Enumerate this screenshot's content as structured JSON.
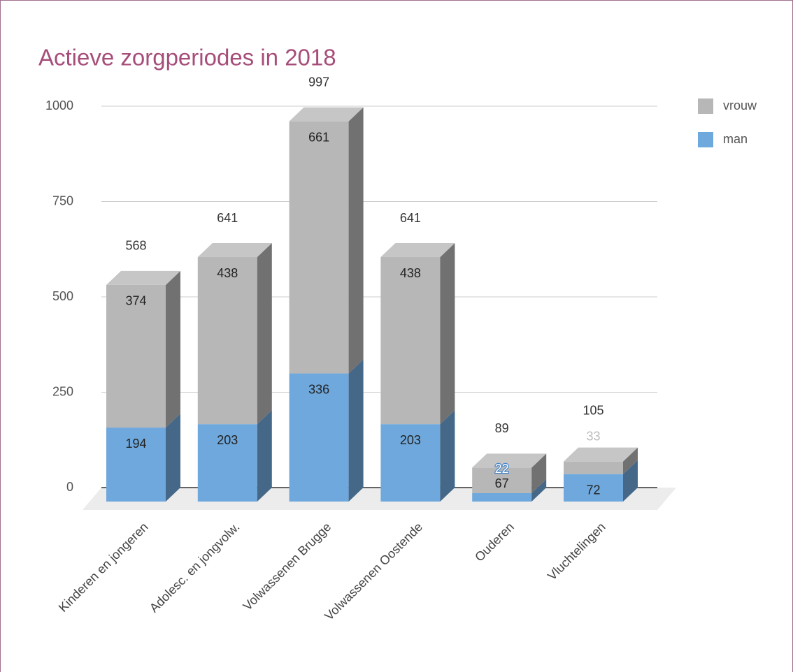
{
  "chart_data": {
    "type": "bar3d_stacked",
    "title": "Actieve zorgperiodes in 2018",
    "categories": [
      "Kinderen en jongeren",
      "Adolesc. en jongvolw.",
      "Volwassenen Brugge",
      "Volwassenen Oostende",
      "Ouderen",
      "Vluchtelingen"
    ],
    "series": [
      {
        "name": "man",
        "color": "#6fa8dc",
        "values": [
          194,
          203,
          336,
          203,
          22,
          72
        ]
      },
      {
        "name": "vrouw",
        "color": "#b7b7b7",
        "values": [
          374,
          438,
          661,
          438,
          67,
          33
        ]
      }
    ],
    "totals": [
      568,
      641,
      997,
      641,
      89,
      105
    ],
    "ylim": [
      0,
      1000
    ],
    "yticks": [
      0,
      250,
      500,
      750,
      1000
    ],
    "grid": true,
    "legend": "right"
  }
}
